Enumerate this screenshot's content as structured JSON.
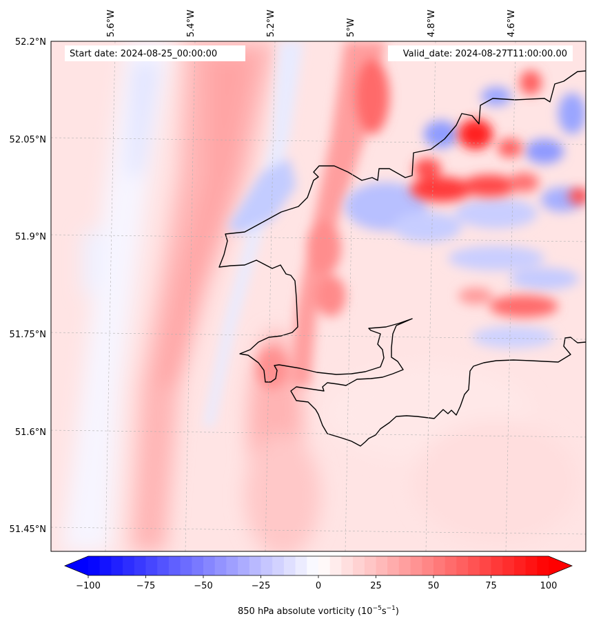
{
  "map": {
    "start_date_label": "Start date: 2024-08-25_00:00:00",
    "valid_date_label": "Valid_date: 2024-08-27T11:00:00.00",
    "lon_labels": [
      "5.6°W",
      "5.4°W",
      "5.2°W",
      "5°W",
      "4.8°W",
      "4.6°W"
    ],
    "lat_labels": [
      "52.2°N",
      "52.05°N",
      "51.9°N",
      "51.75°N",
      "51.6°N",
      "51.45°N"
    ],
    "field_colors": {
      "strong_positive": "#ff0000",
      "weak_positive": "#ffd6d6",
      "neutral": "#ffffff",
      "weak_negative": "#e0e4ff",
      "strong_negative": "#0000ff"
    },
    "coastline_color": "#000000"
  },
  "colorbar": {
    "min": -100,
    "max": 100,
    "step": 5,
    "tick_values": [
      -100,
      -75,
      -50,
      -25,
      0,
      25,
      50,
      75,
      100
    ],
    "tick_labels": [
      "−100",
      "−75",
      "−50",
      "−25",
      "0",
      "25",
      "50",
      "75",
      "100"
    ],
    "title_main": "850 hPa absolute vorticity (10",
    "title_exp1": "−5",
    "title_mid": "s",
    "title_exp2": "−1",
    "title_end": ")",
    "colormap": "bwr",
    "extend": "both"
  }
}
